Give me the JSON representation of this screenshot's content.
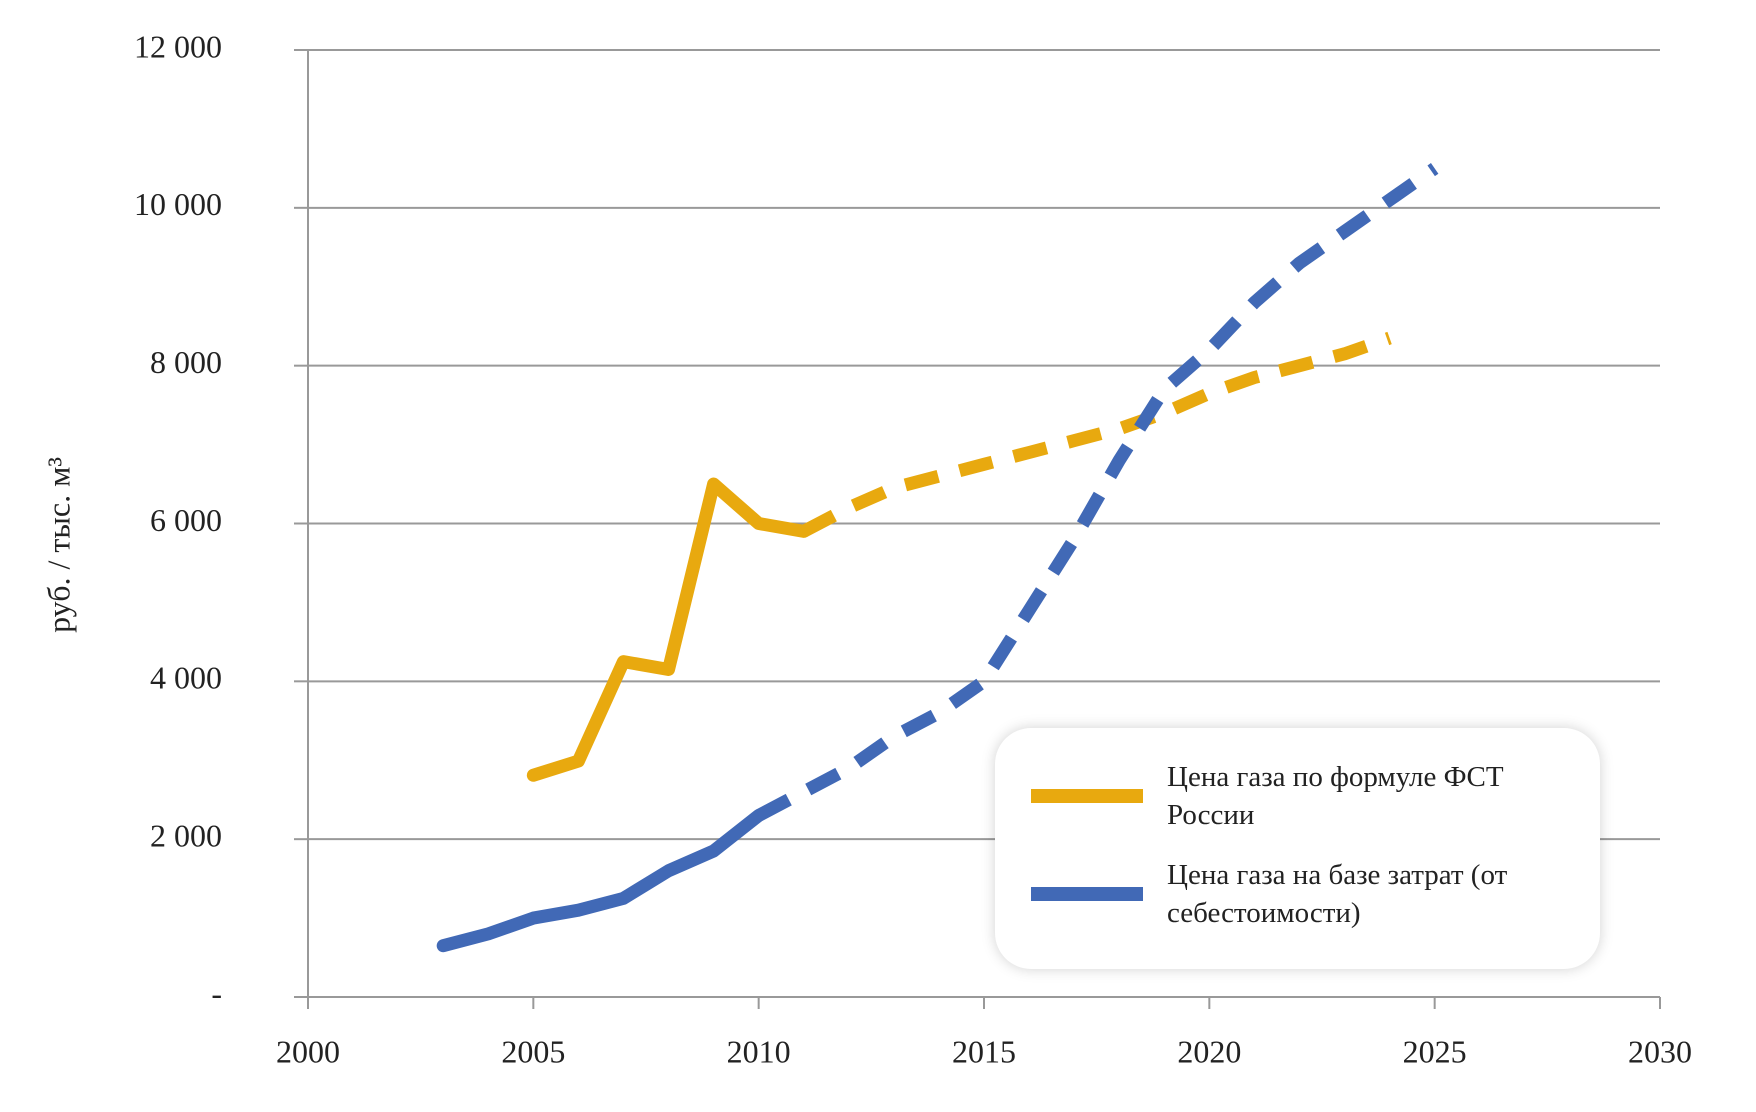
{
  "chart_data": {
    "type": "line",
    "y_label": "руб. / тыс. м³",
    "x": [
      2003,
      2004,
      2005,
      2006,
      2007,
      2008,
      2009,
      2010,
      2011,
      2012,
      2013,
      2014,
      2015,
      2016,
      2017,
      2018,
      2019,
      2020,
      2021,
      2022,
      2023,
      2024,
      2025
    ],
    "series": [
      {
        "name": "Цена  газа по формуле ФСТ России",
        "color": "#e8a90f",
        "dashed_from": 2011,
        "values": [
          null,
          null,
          2810,
          2990,
          4250,
          4150,
          6500,
          6000,
          5900,
          6200,
          6450,
          6600,
          6750,
          6900,
          7050,
          7200,
          7400,
          7650,
          7850,
          8000,
          8150,
          8350,
          null
        ]
      },
      {
        "name": "Цена  газа на базе затрат (от себестоимости)",
        "color": "#4169b6",
        "dashed_from": 2010,
        "values": [
          650,
          800,
          1000,
          1100,
          1250,
          1600,
          1850,
          2300,
          2600,
          2900,
          3300,
          3600,
          4000,
          4900,
          5800,
          6800,
          7700,
          8200,
          8800,
          9300,
          9700,
          10100,
          10500
        ]
      }
    ],
    "xlim": [
      2000,
      2030
    ],
    "xticks": [
      2000,
      2005,
      2010,
      2015,
      2020,
      2025,
      2030
    ],
    "ylim": [
      0,
      12000
    ],
    "yticks": [
      {
        "value": 0,
        "label": "-"
      },
      {
        "value": 2000,
        "label": "2 000"
      },
      {
        "value": 4000,
        "label": "4 000"
      },
      {
        "value": 6000,
        "label": "6 000"
      },
      {
        "value": 8000,
        "label": "8 000"
      },
      {
        "value": 10000,
        "label": "10 000"
      },
      {
        "value": 12000,
        "label": "12 000"
      }
    ],
    "grid": true
  }
}
